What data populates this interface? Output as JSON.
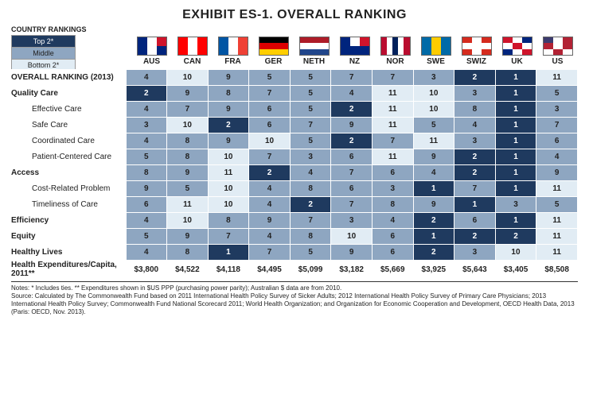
{
  "title": "EXHIBIT ES-1. OVERALL RANKING",
  "title_fontsize": 16,
  "legend_heading": "COUNTRY RANKINGS",
  "legend": [
    {
      "label": "Top 2*",
      "bg": "#1f3a5f",
      "fg": "#ffffff"
    },
    {
      "label": "Middle",
      "bg": "#8ea6c1",
      "fg": "#222222"
    },
    {
      "label": "Bottom 2*",
      "bg": "#e1ecf4",
      "fg": "#222222"
    }
  ],
  "countries": [
    {
      "code": "AUS",
      "flag": [
        [
          "#00247d",
          "#ffffff",
          "#cf142b"
        ],
        [
          "#00247d",
          "#ffffff",
          "#00247d"
        ]
      ]
    },
    {
      "code": "CAN",
      "flag": [
        [
          "#ff0000",
          "#ffffff",
          "#ff0000"
        ]
      ]
    },
    {
      "code": "FRA",
      "flag": [
        [
          "#0055a4",
          "#ffffff",
          "#ef4135"
        ]
      ]
    },
    {
      "code": "GER",
      "flag": [
        [
          "#000000"
        ],
        [
          "#dd0000"
        ],
        [
          "#ffce00"
        ]
      ]
    },
    {
      "code": "NETH",
      "flag": [
        [
          "#ae1c28"
        ],
        [
          "#ffffff"
        ],
        [
          "#21468b"
        ]
      ]
    },
    {
      "code": "NZ",
      "flag": [
        [
          "#00247d",
          "#ffffff",
          "#cf142b"
        ],
        [
          "#00247d",
          "#00247d",
          "#00247d"
        ]
      ]
    },
    {
      "code": "NOR",
      "flag": [
        [
          "#ba0c2f",
          "#ffffff",
          "#00205b",
          "#ffffff",
          "#ba0c2f"
        ]
      ]
    },
    {
      "code": "SWE",
      "flag": [
        [
          "#006aa7",
          "#fecc00",
          "#006aa7"
        ]
      ]
    },
    {
      "code": "SWIZ",
      "flag": [
        [
          "#d52b1e",
          "#ffffff",
          "#d52b1e"
        ],
        [
          "#ffffff",
          "#ffffff",
          "#ffffff"
        ],
        [
          "#d52b1e",
          "#ffffff",
          "#d52b1e"
        ]
      ]
    },
    {
      "code": "UK",
      "flag": [
        [
          "#cf142b",
          "#ffffff",
          "#00247d"
        ],
        [
          "#ffffff",
          "#cf142b",
          "#ffffff"
        ],
        [
          "#00247d",
          "#ffffff",
          "#cf142b"
        ]
      ]
    },
    {
      "code": "US",
      "flag": [
        [
          "#3c3b6e",
          "#ffffff",
          "#b22234"
        ],
        [
          "#b22234",
          "#ffffff",
          "#b22234"
        ],
        [
          "#ffffff",
          "#b22234",
          "#ffffff"
        ]
      ]
    }
  ],
  "rows": [
    {
      "label": "OVERALL RANKING (2013)",
      "bold": true,
      "sub": false,
      "vals": [
        4,
        10,
        9,
        5,
        5,
        7,
        7,
        3,
        2,
        1,
        11
      ]
    },
    {
      "label": "Quality Care",
      "bold": true,
      "sub": false,
      "vals": [
        2,
        9,
        8,
        7,
        5,
        4,
        11,
        10,
        3,
        1,
        5
      ]
    },
    {
      "label": "Effective Care",
      "bold": false,
      "sub": true,
      "vals": [
        4,
        7,
        9,
        6,
        5,
        2,
        11,
        10,
        8,
        1,
        3
      ]
    },
    {
      "label": "Safe Care",
      "bold": false,
      "sub": true,
      "vals": [
        3,
        10,
        2,
        6,
        7,
        9,
        11,
        5,
        4,
        1,
        7
      ]
    },
    {
      "label": "Coordinated Care",
      "bold": false,
      "sub": true,
      "vals": [
        4,
        8,
        9,
        10,
        5,
        2,
        7,
        11,
        3,
        1,
        6
      ]
    },
    {
      "label": "Patient-Centered Care",
      "bold": false,
      "sub": true,
      "vals": [
        5,
        8,
        10,
        7,
        3,
        6,
        11,
        9,
        2,
        1,
        4
      ]
    },
    {
      "label": "Access",
      "bold": true,
      "sub": false,
      "vals": [
        8,
        9,
        11,
        2,
        4,
        7,
        6,
        4,
        2,
        1,
        9
      ]
    },
    {
      "label": "Cost-Related Problem",
      "bold": false,
      "sub": true,
      "vals": [
        9,
        5,
        10,
        4,
        8,
        6,
        3,
        1,
        7,
        1,
        11
      ]
    },
    {
      "label": "Timeliness of Care",
      "bold": false,
      "sub": true,
      "vals": [
        6,
        11,
        10,
        4,
        2,
        7,
        8,
        9,
        1,
        3,
        5
      ]
    },
    {
      "label": "Efficiency",
      "bold": true,
      "sub": false,
      "vals": [
        4,
        10,
        8,
        9,
        7,
        3,
        4,
        2,
        6,
        1,
        11
      ]
    },
    {
      "label": "Equity",
      "bold": true,
      "sub": false,
      "vals": [
        5,
        9,
        7,
        4,
        8,
        10,
        6,
        1,
        2,
        2,
        11
      ]
    },
    {
      "label": "Healthy Lives",
      "bold": true,
      "sub": false,
      "vals": [
        4,
        8,
        1,
        7,
        5,
        9,
        6,
        2,
        3,
        10,
        11
      ]
    }
  ],
  "n_countries": 11,
  "expenditures": {
    "label": "Health Expenditures/Capita, 2011**",
    "vals": [
      "$3,800",
      "$4,522",
      "$4,118",
      "$4,495",
      "$5,099",
      "$3,182",
      "$5,669",
      "$3,925",
      "$5,643",
      "$3,405",
      "$8,508"
    ]
  },
  "notes": [
    "Notes: * Includes ties. ** Expenditures shown in $US PPP (purchasing power parity); Australian $ data are from 2010.",
    "Source: Calculated by The Commonwealth Fund based on 2011 International Health Policy Survey of Sicker Adults; 2012 International Health Policy Survey of Primary Care Physicians; 2013 International Health Policy Survey; Commonwealth Fund National Scorecard 2011; World Health Organization; and Organization for Economic Cooperation and Development, OECD Health Data, 2013 (Paris: OECD, Nov. 2013)."
  ],
  "colors": {
    "top2": "#1f3a5f",
    "mid": "#8ea6c1",
    "bot2": "#e1ecf4",
    "cell_border": "#ffffff",
    "text_dark": "#222222",
    "text_light": "#ffffff"
  }
}
